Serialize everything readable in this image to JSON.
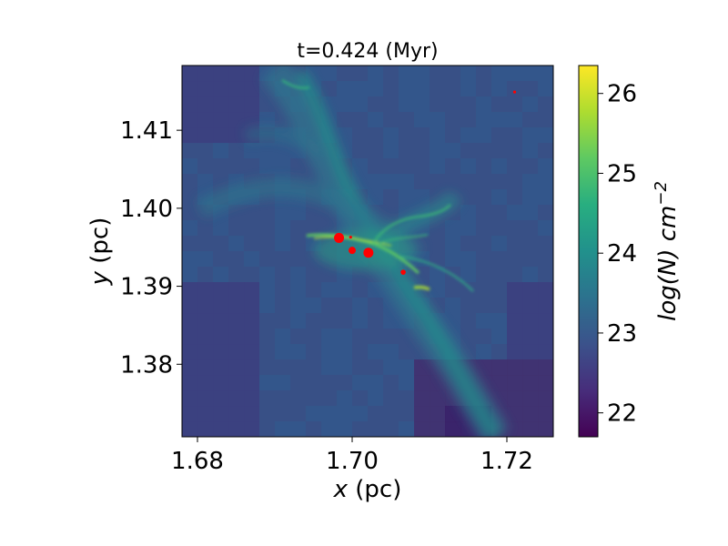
{
  "chart_data": {
    "type": "heatmap",
    "title": "t=0.424 (Myr)",
    "xlabel": "x (pc)",
    "xlabel_var": "x",
    "xlabel_unit": " (pc)",
    "ylabel": "y (pc)",
    "ylabel_var": "y",
    "ylabel_unit": " (pc)",
    "xlim": [
      1.678,
      1.726
    ],
    "ylim": [
      1.3707,
      1.4183
    ],
    "x_ticks": [
      1.68,
      1.7,
      1.72
    ],
    "x_tick_labels": [
      "1.68",
      "1.70",
      "1.72"
    ],
    "y_ticks": [
      1.38,
      1.39,
      1.4,
      1.41
    ],
    "y_tick_labels": [
      "1.38",
      "1.39",
      "1.40",
      "1.41"
    ],
    "colorbar": {
      "label": "log(N) cm^-2",
      "label_main": "log(N) cm",
      "label_exp": "−2",
      "range": [
        21.7,
        26.35
      ],
      "ticks": [
        22,
        23,
        24,
        25,
        26
      ],
      "tick_labels": [
        "22",
        "23",
        "24",
        "25",
        "26"
      ],
      "colormap": "viridis"
    },
    "point_color": "#ff0000",
    "points": [
      {
        "x": 1.6983,
        "y": 1.3962,
        "size": "large"
      },
      {
        "x": 1.7021,
        "y": 1.3943,
        "size": "large"
      },
      {
        "x": 1.7,
        "y": 1.3946,
        "size": "medium"
      },
      {
        "x": 1.7066,
        "y": 1.3918,
        "size": "small"
      },
      {
        "x": 1.721,
        "y": 1.4149,
        "size": "tiny"
      },
      {
        "x": 1.6998,
        "y": 1.3963,
        "size": "tiny"
      }
    ]
  }
}
